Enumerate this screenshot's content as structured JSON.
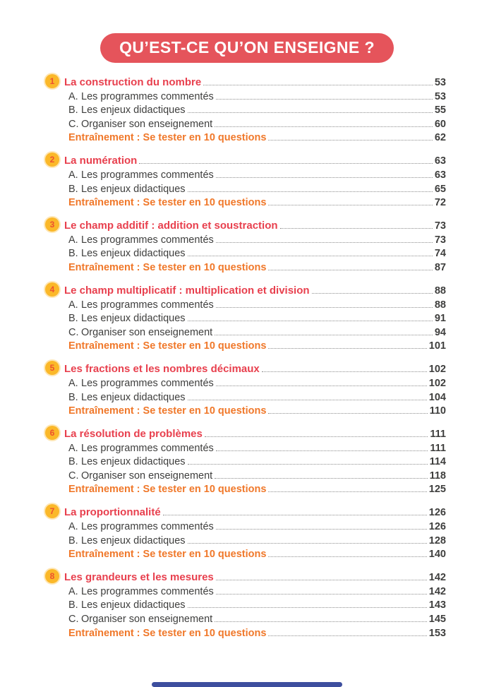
{
  "header": {
    "title": "QU’EST-CE QU’ON ENSEIGNE ?"
  },
  "colors": {
    "banner-red": "#E5545B",
    "title-red": "#E8404E",
    "training-orange": "#F0782A",
    "badge-yellow": "#FBB829",
    "badge-number": "#ED512F",
    "text-dark": "#3E3E3D",
    "leader-gray": "#8D8D8D",
    "footer-blue": "#3D4E9E"
  },
  "toc": {
    "training_label": "Entraînement : Se tester en 10 questions",
    "sections": [
      {
        "num": "1",
        "title": "La construction du nombre",
        "page": "53",
        "items": [
          {
            "prefix": "A.",
            "label": "Les programmes commentés",
            "page": "53"
          },
          {
            "prefix": "B.",
            "label": "Les enjeux didactiques",
            "page": "55"
          },
          {
            "prefix": "C.",
            "label": "Organiser son enseignement",
            "page": "60"
          }
        ],
        "training_page": "62"
      },
      {
        "num": "2",
        "title": "La numération",
        "page": "63",
        "items": [
          {
            "prefix": "A.",
            "label": "Les programmes commentés",
            "page": "63"
          },
          {
            "prefix": "B.",
            "label": "Les enjeux didactiques",
            "page": "65"
          }
        ],
        "training_page": "72"
      },
      {
        "num": "3",
        "title": "Le champ additif : addition et soustraction",
        "page": "73",
        "items": [
          {
            "prefix": "A.",
            "label": "Les programmes commentés",
            "page": "73"
          },
          {
            "prefix": "B.",
            "label": "Les enjeux didactiques",
            "page": "74"
          }
        ],
        "training_page": "87"
      },
      {
        "num": "4",
        "title": "Le champ multiplicatif : multiplication et division",
        "page": "88",
        "items": [
          {
            "prefix": "A.",
            "label": "Les programmes commentés",
            "page": "88"
          },
          {
            "prefix": "B.",
            "label": "Les enjeux didactiques",
            "page": "91"
          },
          {
            "prefix": "C.",
            "label": "Organiser son enseignement",
            "page": "94"
          }
        ],
        "training_page": "101"
      },
      {
        "num": "5",
        "title": "Les fractions et les nombres décimaux",
        "page": "102",
        "items": [
          {
            "prefix": "A.",
            "label": "Les programmes commentés",
            "page": "102"
          },
          {
            "prefix": "B.",
            "label": "Les enjeux didactiques",
            "page": "104"
          }
        ],
        "training_page": "110"
      },
      {
        "num": "6",
        "title": "La résolution de problèmes",
        "page": "111",
        "items": [
          {
            "prefix": "A.",
            "label": "Les programmes commentés",
            "page": "111"
          },
          {
            "prefix": "B.",
            "label": "Les enjeux didactiques",
            "page": "114"
          },
          {
            "prefix": "C.",
            "label": "Organiser son enseignement",
            "page": "118"
          }
        ],
        "training_page": "125"
      },
      {
        "num": "7",
        "title": "La proportionnalité",
        "page": "126",
        "items": [
          {
            "prefix": "A.",
            "label": "Les programmes commentés",
            "page": "126"
          },
          {
            "prefix": "B.",
            "label": "Les enjeux didactiques",
            "page": "128"
          }
        ],
        "training_page": "140"
      },
      {
        "num": "8",
        "title": "Les grandeurs et les mesures",
        "page": "142",
        "items": [
          {
            "prefix": "A.",
            "label": "Les programmes commentés",
            "page": "142"
          },
          {
            "prefix": "B.",
            "label": "Les enjeux didactiques",
            "page": "143"
          },
          {
            "prefix": "C.",
            "label": "Organiser son enseignement",
            "page": "145"
          }
        ],
        "training_page": "153"
      }
    ]
  }
}
